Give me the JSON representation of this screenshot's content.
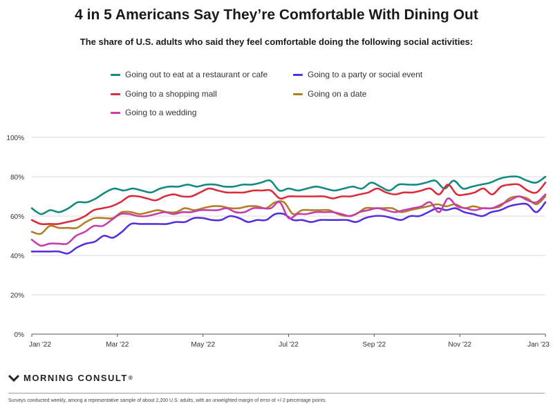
{
  "chart_data": {
    "type": "line",
    "title": "4 in 5 Americans Say They’re Comfortable With Dining Out",
    "subtitle": "The share of U.S. adults who said they feel comfortable doing the following social activities:",
    "ylim": [
      0,
      100
    ],
    "yticks": [
      0,
      20,
      40,
      60,
      80,
      100
    ],
    "ytick_labels": [
      "0%",
      "20%",
      "40%",
      "60%",
      "80%",
      "100%"
    ],
    "xlim": [
      0,
      54
    ],
    "xticks": [
      0,
      9,
      18,
      27,
      36,
      45,
      54
    ],
    "xtick_labels": [
      "Jan '22",
      "Mar '22",
      "May '22",
      "Jul '22",
      "Sep '22",
      "Nov '22",
      "Jan '23"
    ],
    "grid": true,
    "legend_position": "top",
    "series": [
      {
        "name": "Going out to eat at a restaurant or cafe",
        "color": "#138a7d",
        "values": [
          64,
          61,
          63,
          62,
          64,
          67,
          67,
          69,
          72,
          74,
          73,
          74,
          73,
          72,
          74,
          75,
          75,
          76,
          75,
          76,
          76,
          75,
          75,
          76,
          76,
          77,
          78,
          73,
          74,
          73,
          74,
          75,
          74,
          73,
          74,
          75,
          74,
          77,
          75,
          73,
          76,
          76,
          76,
          77,
          78,
          74,
          78,
          74,
          75,
          76,
          77,
          79,
          80,
          80,
          78,
          77,
          80
        ]
      },
      {
        "name": "Going to a party or social event",
        "color": "#5630e0",
        "values": [
          42,
          42,
          42,
          42,
          41,
          44,
          46,
          47,
          50,
          49,
          52,
          56,
          56,
          56,
          56,
          56,
          57,
          57,
          59,
          59,
          58,
          58,
          60,
          59,
          57,
          58,
          58,
          61,
          61,
          58,
          58,
          57,
          58,
          58,
          58,
          58,
          57,
          59,
          60,
          60,
          59,
          58,
          60,
          60,
          62,
          64,
          63,
          64,
          62,
          61,
          60,
          62,
          63,
          65,
          66,
          66,
          62,
          67
        ]
      },
      {
        "name": "Going to a shopping mall",
        "color": "#d92b3a",
        "values": [
          58,
          56,
          56,
          56,
          57,
          58,
          60,
          63,
          64,
          65,
          67,
          70,
          70,
          69,
          68,
          70,
          71,
          70,
          70,
          72,
          74,
          73,
          72,
          72,
          72,
          73,
          73,
          73,
          69,
          70,
          70,
          70,
          70,
          70,
          69,
          70,
          70,
          71,
          72,
          74,
          72,
          71,
          72,
          72,
          73,
          74,
          71,
          76,
          71,
          71,
          72,
          74,
          71,
          75,
          76,
          76,
          73,
          72,
          77
        ]
      },
      {
        "name": "Going on a date",
        "color": "#b07f24",
        "values": [
          52,
          51,
          55,
          54,
          54,
          54,
          57,
          59,
          59,
          59,
          62,
          62,
          61,
          62,
          63,
          62,
          62,
          64,
          63,
          64,
          65,
          65,
          64,
          64,
          65,
          65,
          64,
          67,
          67,
          61,
          63,
          63,
          63,
          63,
          61,
          60,
          61,
          64,
          64,
          64,
          64,
          62,
          63,
          64,
          65,
          66,
          65,
          66,
          64,
          65,
          64,
          64,
          65,
          69,
          70,
          69,
          66,
          70
        ]
      },
      {
        "name": "Going to a wedding",
        "color": "#c93cab",
        "values": [
          48,
          45,
          46,
          46,
          46,
          50,
          52,
          55,
          55,
          58,
          61,
          61,
          60,
          60,
          61,
          62,
          61,
          62,
          62,
          63,
          63,
          63,
          64,
          62,
          62,
          64,
          64,
          64,
          67,
          59,
          61,
          61,
          62,
          62,
          62,
          61,
          60,
          62,
          63,
          64,
          63,
          62,
          63,
          64,
          65,
          67,
          62,
          69,
          65,
          64,
          63,
          64,
          64,
          66,
          68,
          70,
          68,
          67,
          71
        ]
      }
    ]
  },
  "brand": {
    "name": "MORNING CONSULT",
    "registered": "®",
    "logo_icon": "mc-chevron-logo"
  },
  "footnote": "Surveys conducted weekly, among a representative sample of about 2,200 U.S. adults, with an unweighted margin of error of +/-2 percentage points."
}
